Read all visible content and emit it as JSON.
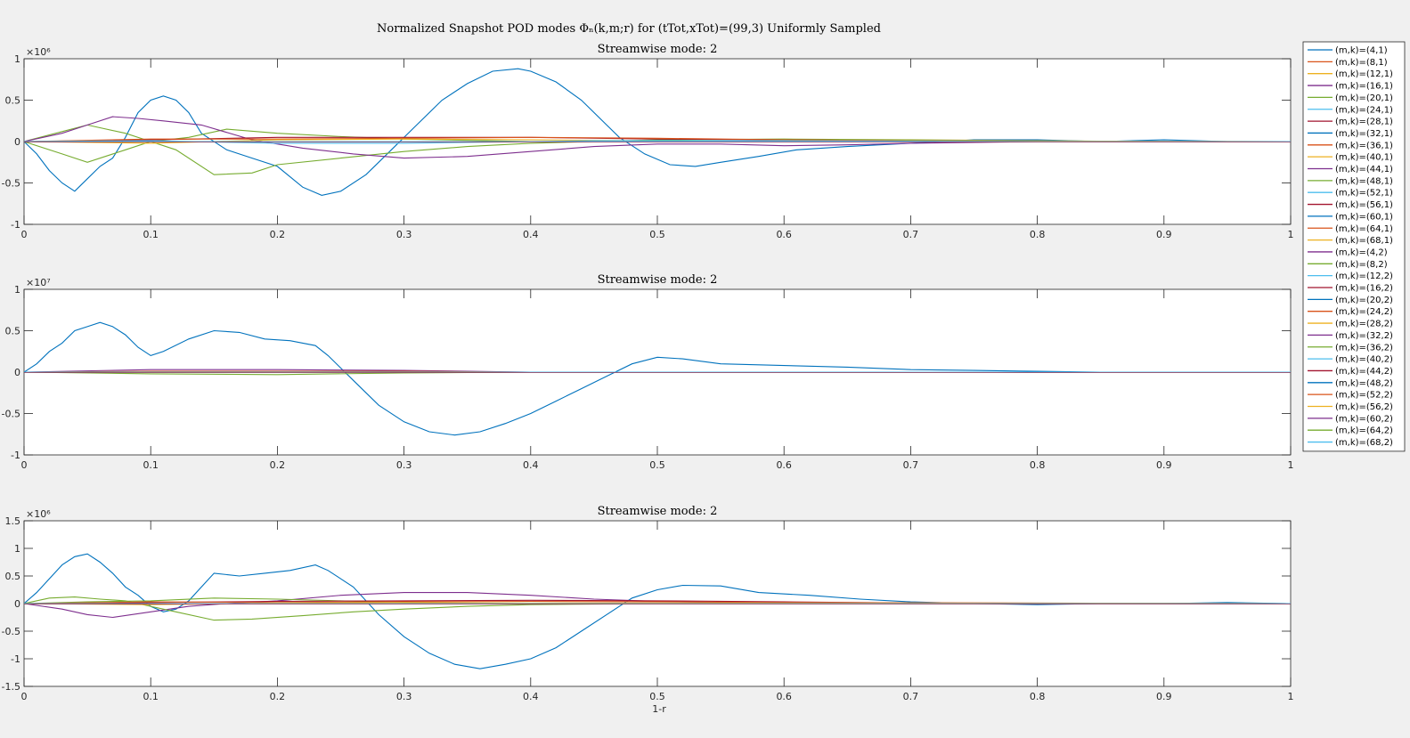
{
  "figure": {
    "title": "Normalized Snapshot POD modes Φₙ(k,m;r) for (tTot,xTot)=(99,3) Uniformly Sampled",
    "xlabel": "1-r"
  },
  "legend": {
    "placement": "right",
    "entries": [
      {
        "label": "(m,k)=(4,1)",
        "color": "#0072bd"
      },
      {
        "label": "(m,k)=(8,1)",
        "color": "#d95319"
      },
      {
        "label": "(m,k)=(12,1)",
        "color": "#edb120"
      },
      {
        "label": "(m,k)=(16,1)",
        "color": "#7e2f8e"
      },
      {
        "label": "(m,k)=(20,1)",
        "color": "#77ac30"
      },
      {
        "label": "(m,k)=(24,1)",
        "color": "#4dbeee"
      },
      {
        "label": "(m,k)=(28,1)",
        "color": "#a2142f"
      },
      {
        "label": "(m,k)=(32,1)",
        "color": "#0072bd"
      },
      {
        "label": "(m,k)=(36,1)",
        "color": "#d95319"
      },
      {
        "label": "(m,k)=(40,1)",
        "color": "#edb120"
      },
      {
        "label": "(m,k)=(44,1)",
        "color": "#7e2f8e"
      },
      {
        "label": "(m,k)=(48,1)",
        "color": "#77ac30"
      },
      {
        "label": "(m,k)=(52,1)",
        "color": "#4dbeee"
      },
      {
        "label": "(m,k)=(56,1)",
        "color": "#a2142f"
      },
      {
        "label": "(m,k)=(60,1)",
        "color": "#0072bd"
      },
      {
        "label": "(m,k)=(64,1)",
        "color": "#d95319"
      },
      {
        "label": "(m,k)=(68,1)",
        "color": "#edb120"
      },
      {
        "label": "(m,k)=(4,2)",
        "color": "#7e2f8e"
      },
      {
        "label": "(m,k)=(8,2)",
        "color": "#77ac30"
      },
      {
        "label": "(m,k)=(12,2)",
        "color": "#4dbeee"
      },
      {
        "label": "(m,k)=(16,2)",
        "color": "#a2142f"
      },
      {
        "label": "(m,k)=(20,2)",
        "color": "#0072bd"
      },
      {
        "label": "(m,k)=(24,2)",
        "color": "#d95319"
      },
      {
        "label": "(m,k)=(28,2)",
        "color": "#edb120"
      },
      {
        "label": "(m,k)=(32,2)",
        "color": "#7e2f8e"
      },
      {
        "label": "(m,k)=(36,2)",
        "color": "#77ac30"
      },
      {
        "label": "(m,k)=(40,2)",
        "color": "#4dbeee"
      },
      {
        "label": "(m,k)=(44,2)",
        "color": "#a2142f"
      },
      {
        "label": "(m,k)=(48,2)",
        "color": "#0072bd"
      },
      {
        "label": "(m,k)=(52,2)",
        "color": "#d95319"
      },
      {
        "label": "(m,k)=(56,2)",
        "color": "#edb120"
      },
      {
        "label": "(m,k)=(60,2)",
        "color": "#7e2f8e"
      },
      {
        "label": "(m,k)=(64,2)",
        "color": "#77ac30"
      },
      {
        "label": "(m,k)=(68,2)",
        "color": "#4dbeee"
      }
    ]
  },
  "chart_data": [
    {
      "type": "line",
      "title": "Streamwise mode: 2",
      "exponent_label": "×10⁶",
      "xlim": [
        0,
        1
      ],
      "ylim": [
        -1,
        1
      ],
      "xticks": [
        "0",
        "0.1",
        "0.2",
        "0.3",
        "0.4",
        "0.5",
        "0.6",
        "0.7",
        "0.8",
        "0.9",
        "1"
      ],
      "yticks": [
        [
          -1,
          "-1"
        ],
        [
          -0.5,
          "-0.5"
        ],
        [
          0,
          "0"
        ],
        [
          0.5,
          "0.5"
        ],
        [
          1,
          "1"
        ]
      ],
      "grid": false,
      "series": [
        {
          "color": "#0072bd",
          "x": [
            0,
            0.01,
            0.02,
            0.03,
            0.04,
            0.05,
            0.06,
            0.07,
            0.08,
            0.09,
            0.1,
            0.11,
            0.12,
            0.13,
            0.14,
            0.16,
            0.18,
            0.2,
            0.22,
            0.235,
            0.25,
            0.27,
            0.29,
            0.31,
            0.33,
            0.35,
            0.37,
            0.39,
            0.4,
            0.42,
            0.44,
            0.46,
            0.47,
            0.49,
            0.51,
            0.53,
            0.55,
            0.58,
            0.61,
            0.65,
            0.7,
            0.75,
            0.8,
            0.85,
            0.9,
            0.95,
            1
          ],
          "y": [
            0,
            -0.15,
            -0.35,
            -0.5,
            -0.6,
            -0.45,
            -0.3,
            -0.2,
            0.05,
            0.35,
            0.5,
            0.55,
            0.5,
            0.35,
            0.1,
            -0.1,
            -0.2,
            -0.3,
            -0.55,
            -0.65,
            -0.6,
            -0.4,
            -0.1,
            0.2,
            0.5,
            0.7,
            0.85,
            0.88,
            0.85,
            0.72,
            0.5,
            0.2,
            0.05,
            -0.15,
            -0.28,
            -0.3,
            -0.25,
            -0.18,
            -0.1,
            -0.06,
            -0.02,
            0.02,
            0.02,
            0.0,
            0.02,
            0.0,
            0.0
          ]
        },
        {
          "color": "#77ac30",
          "x": [
            0,
            0.03,
            0.05,
            0.08,
            0.1,
            0.12,
            0.15,
            0.18,
            0.2,
            0.25,
            0.3,
            0.35,
            0.4,
            0.45,
            0.5,
            0.6,
            0.7,
            0.8,
            0.9,
            1
          ],
          "y": [
            0,
            -0.15,
            -0.25,
            -0.1,
            0.0,
            -0.1,
            -0.4,
            -0.38,
            -0.28,
            -0.2,
            -0.12,
            -0.06,
            -0.02,
            0,
            0.02,
            0.03,
            0.02,
            0.01,
            0,
            0
          ]
        },
        {
          "color": "#77ac30",
          "x": [
            0,
            0.03,
            0.05,
            0.08,
            0.1,
            0.13,
            0.16,
            0.2,
            0.25,
            0.3,
            0.4,
            0.5,
            0.6,
            0.7,
            0.8,
            1
          ],
          "y": [
            0,
            0.12,
            0.2,
            0.1,
            0.0,
            0.05,
            0.15,
            0.1,
            0.06,
            0.03,
            0.0,
            0.0,
            0.0,
            0.0,
            0,
            0
          ]
        },
        {
          "color": "#7e2f8e",
          "x": [
            0,
            0.03,
            0.05,
            0.07,
            0.09,
            0.11,
            0.14,
            0.18,
            0.22,
            0.26,
            0.3,
            0.35,
            0.4,
            0.45,
            0.5,
            0.55,
            0.6,
            0.65,
            0.7,
            0.8,
            0.9,
            1
          ],
          "y": [
            0,
            0.1,
            0.2,
            0.3,
            0.28,
            0.25,
            0.2,
            0.02,
            -0.08,
            -0.15,
            -0.2,
            -0.18,
            -0.12,
            -0.06,
            -0.03,
            -0.03,
            -0.05,
            -0.04,
            -0.02,
            0,
            0,
            0
          ]
        },
        {
          "color": "#a2142f",
          "x": [
            0,
            0.1,
            0.2,
            0.3,
            0.4,
            0.5,
            0.6,
            0.7,
            0.8,
            1
          ],
          "y": [
            0,
            0.02,
            0.05,
            0.05,
            0.05,
            0.03,
            0.02,
            0.01,
            0,
            0
          ]
        },
        {
          "color": "#d95319",
          "x": [
            0,
            0.1,
            0.2,
            0.3,
            0.4,
            0.5,
            0.6,
            0.7,
            1
          ],
          "y": [
            0,
            0.03,
            0.03,
            0.04,
            0.05,
            0.04,
            0.02,
            0.01,
            0
          ]
        },
        {
          "color": "#edb120",
          "x": [
            0,
            0.1,
            0.2,
            0.3,
            0.4,
            0.5,
            0.6,
            1
          ],
          "y": [
            0,
            -0.02,
            0.02,
            0.03,
            0.02,
            0.01,
            0.01,
            0
          ]
        },
        {
          "color": "#4dbeee",
          "x": [
            0,
            0.1,
            0.2,
            0.3,
            0.45,
            0.6,
            0.8,
            1
          ],
          "y": [
            0,
            0.01,
            -0.02,
            -0.02,
            0.01,
            0.01,
            0,
            0
          ]
        }
      ]
    },
    {
      "type": "line",
      "title": "Streamwise mode: 2",
      "exponent_label": "×10⁷",
      "xlim": [
        0,
        1
      ],
      "ylim": [
        -1,
        1
      ],
      "xticks": [
        "0",
        "0.1",
        "0.2",
        "0.3",
        "0.4",
        "0.5",
        "0.6",
        "0.7",
        "0.8",
        "0.9",
        "1"
      ],
      "yticks": [
        [
          -1,
          "-1"
        ],
        [
          -0.5,
          "-0.5"
        ],
        [
          0,
          "0"
        ],
        [
          0.5,
          "0.5"
        ],
        [
          1,
          "1"
        ]
      ],
      "grid": false,
      "series": [
        {
          "color": "#0072bd",
          "x": [
            0,
            0.01,
            0.02,
            0.03,
            0.04,
            0.05,
            0.06,
            0.07,
            0.08,
            0.09,
            0.1,
            0.11,
            0.13,
            0.15,
            0.17,
            0.19,
            0.21,
            0.23,
            0.24,
            0.26,
            0.28,
            0.3,
            0.32,
            0.34,
            0.36,
            0.38,
            0.4,
            0.42,
            0.44,
            0.46,
            0.48,
            0.5,
            0.52,
            0.55,
            0.6,
            0.65,
            0.7,
            0.75,
            0.8,
            0.85,
            0.9,
            0.95,
            1
          ],
          "y": [
            0,
            0.1,
            0.25,
            0.35,
            0.5,
            0.55,
            0.6,
            0.55,
            0.45,
            0.3,
            0.2,
            0.25,
            0.4,
            0.5,
            0.48,
            0.4,
            0.38,
            0.32,
            0.2,
            -0.1,
            -0.4,
            -0.6,
            -0.72,
            -0.76,
            -0.72,
            -0.62,
            -0.5,
            -0.35,
            -0.2,
            -0.05,
            0.1,
            0.18,
            0.16,
            0.1,
            0.08,
            0.06,
            0.03,
            0.02,
            0.01,
            0,
            0,
            0,
            0
          ]
        },
        {
          "color": "#7e2f8e",
          "x": [
            0,
            0.1,
            0.2,
            0.3,
            0.4,
            0.5,
            0.6,
            1
          ],
          "y": [
            0,
            0.03,
            0.03,
            0.02,
            0.0,
            0,
            0,
            0
          ]
        },
        {
          "color": "#77ac30",
          "x": [
            0,
            0.1,
            0.2,
            0.3,
            0.4,
            0.5,
            0.6,
            1
          ],
          "y": [
            0,
            -0.02,
            -0.03,
            -0.01,
            0,
            0,
            0,
            0
          ]
        },
        {
          "color": "#d95319",
          "x": [
            0,
            0.1,
            0.2,
            0.3,
            0.4,
            1
          ],
          "y": [
            0,
            0.01,
            0.01,
            0.01,
            0,
            0
          ]
        }
      ]
    },
    {
      "type": "line",
      "title": "Streamwise mode: 2",
      "exponent_label": "×10⁶",
      "xlim": [
        0,
        1
      ],
      "ylim": [
        -1.5,
        1.5
      ],
      "xticks": [
        "0",
        "0.1",
        "0.2",
        "0.3",
        "0.4",
        "0.5",
        "0.6",
        "0.7",
        "0.8",
        "0.9",
        "1"
      ],
      "yticks": [
        [
          -1.5,
          "-1.5"
        ],
        [
          -1,
          "-1"
        ],
        [
          -0.5,
          "-0.5"
        ],
        [
          0,
          "0"
        ],
        [
          0.5,
          "0.5"
        ],
        [
          1,
          "1"
        ],
        [
          1.5,
          "1.5"
        ]
      ],
      "grid": false,
      "series": [
        {
          "color": "#0072bd",
          "x": [
            0,
            0.01,
            0.02,
            0.03,
            0.04,
            0.05,
            0.06,
            0.07,
            0.08,
            0.09,
            0.1,
            0.11,
            0.12,
            0.13,
            0.14,
            0.15,
            0.17,
            0.19,
            0.21,
            0.23,
            0.24,
            0.26,
            0.28,
            0.3,
            0.32,
            0.34,
            0.36,
            0.38,
            0.4,
            0.42,
            0.44,
            0.46,
            0.48,
            0.5,
            0.52,
            0.55,
            0.58,
            0.62,
            0.66,
            0.7,
            0.75,
            0.8,
            0.85,
            0.9,
            0.95,
            1
          ],
          "y": [
            0,
            0.2,
            0.45,
            0.7,
            0.85,
            0.9,
            0.75,
            0.55,
            0.3,
            0.15,
            -0.05,
            -0.15,
            -0.1,
            0.05,
            0.3,
            0.55,
            0.5,
            0.55,
            0.6,
            0.7,
            0.6,
            0.3,
            -0.2,
            -0.6,
            -0.9,
            -1.1,
            -1.18,
            -1.1,
            -1.0,
            -0.8,
            -0.5,
            -0.2,
            0.1,
            0.25,
            0.33,
            0.32,
            0.2,
            0.15,
            0.08,
            0.03,
            0.0,
            -0.02,
            0.0,
            0,
            0.02,
            0
          ]
        },
        {
          "color": "#7e2f8e",
          "x": [
            0,
            0.03,
            0.05,
            0.07,
            0.1,
            0.13,
            0.16,
            0.2,
            0.25,
            0.3,
            0.35,
            0.4,
            0.45,
            0.5,
            0.55,
            0.6,
            0.7,
            0.8,
            1
          ],
          "y": [
            0,
            -0.1,
            -0.2,
            -0.25,
            -0.15,
            -0.05,
            0.0,
            0.05,
            0.15,
            0.2,
            0.2,
            0.15,
            0.08,
            0.04,
            0.02,
            0.01,
            0,
            0,
            0
          ]
        },
        {
          "color": "#77ac30",
          "x": [
            0,
            0.02,
            0.04,
            0.06,
            0.08,
            0.1,
            0.12,
            0.15,
            0.18,
            0.22,
            0.26,
            0.3,
            0.35,
            0.4,
            0.5,
            0.6,
            0.7,
            1
          ],
          "y": [
            0,
            0.1,
            0.12,
            0.08,
            0.05,
            -0.05,
            -0.15,
            -0.3,
            -0.28,
            -0.22,
            -0.15,
            -0.1,
            -0.05,
            -0.02,
            0,
            0.02,
            0.01,
            0
          ]
        },
        {
          "color": "#77ac30",
          "x": [
            0,
            0.05,
            0.1,
            0.15,
            0.2,
            0.25,
            0.3,
            0.4,
            0.5,
            1
          ],
          "y": [
            0,
            0.03,
            0.05,
            0.1,
            0.08,
            0.05,
            0.02,
            0,
            0,
            0
          ]
        },
        {
          "color": "#a2142f",
          "x": [
            0,
            0.1,
            0.2,
            0.3,
            0.4,
            0.5,
            0.6,
            0.7,
            1
          ],
          "y": [
            0,
            0.02,
            0.04,
            0.05,
            0.06,
            0.05,
            0.03,
            0.01,
            0
          ]
        },
        {
          "color": "#d95319",
          "x": [
            0,
            0.1,
            0.2,
            0.3,
            0.4,
            0.5,
            0.6,
            1
          ],
          "y": [
            0,
            0.03,
            0.02,
            0.03,
            0.04,
            0.03,
            0.02,
            0
          ]
        },
        {
          "color": "#edb120",
          "x": [
            0,
            0.1,
            0.2,
            0.3,
            0.4,
            0.5,
            1
          ],
          "y": [
            0,
            -0.02,
            0.01,
            0.02,
            0.01,
            0.01,
            0
          ]
        }
      ]
    }
  ]
}
